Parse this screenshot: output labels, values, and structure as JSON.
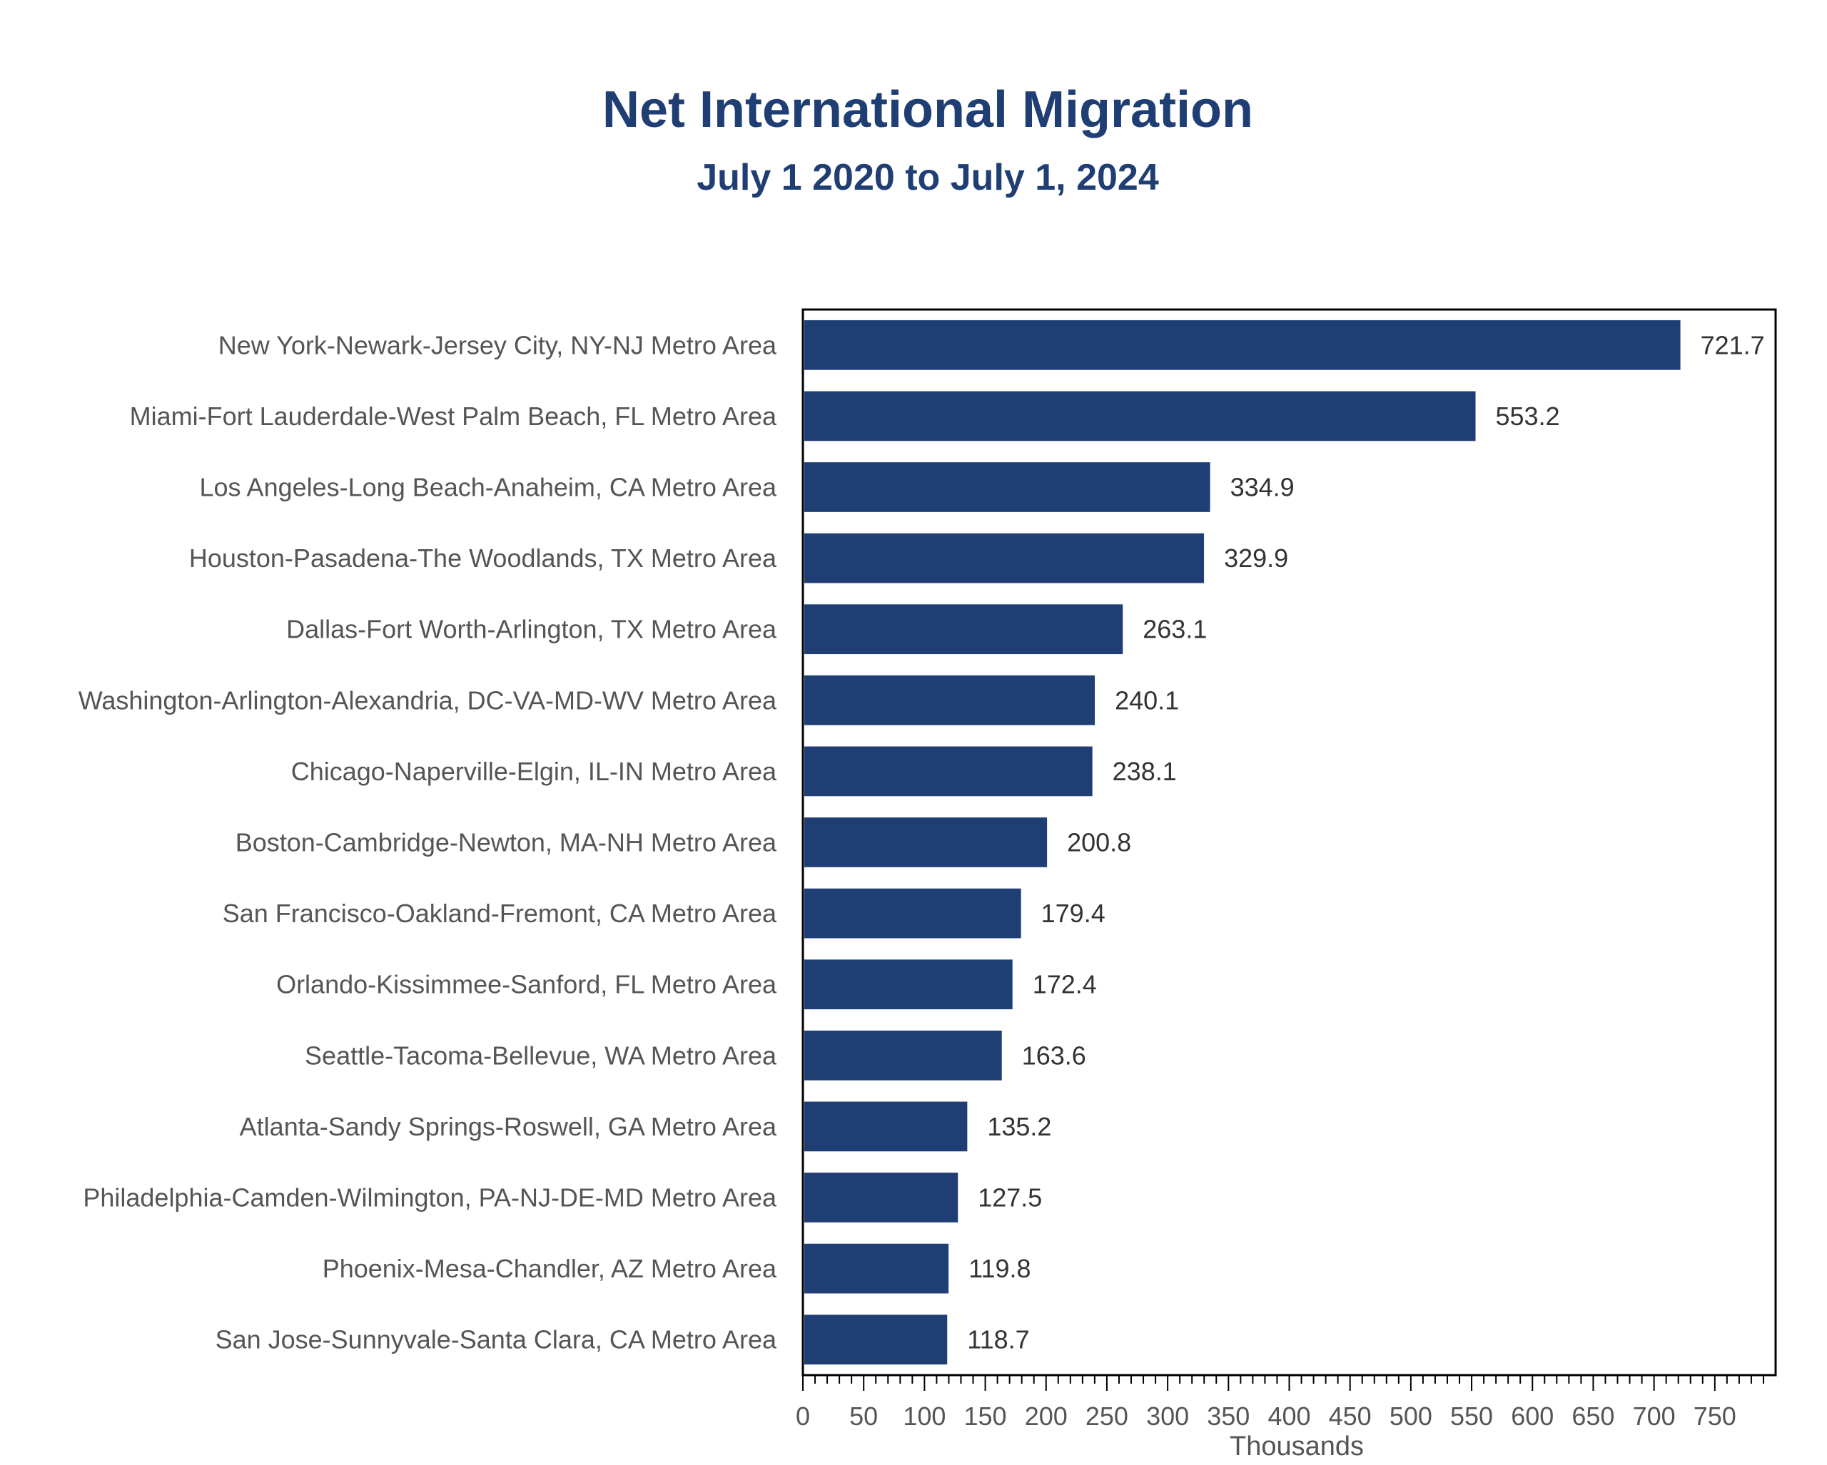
{
  "chart_data": {
    "type": "bar",
    "orientation": "horizontal",
    "title": "Net International Migration",
    "subtitle": "July 1 2020 to July 1, 2024",
    "xlabel": "Thousands",
    "ylabel": "",
    "xlim": [
      0,
      800
    ],
    "x_ticks": [
      "0",
      "50",
      "100",
      "150",
      "200",
      "250",
      "300",
      "350",
      "400",
      "450",
      "500",
      "550",
      "600",
      "650",
      "700",
      "750"
    ],
    "grid": false,
    "legend": "none",
    "bar_color": "#1f3f74",
    "categories": [
      "New York-Newark-Jersey City, NY-NJ Metro Area",
      "Miami-Fort Lauderdale-West Palm Beach, FL Metro Area",
      "Los Angeles-Long Beach-Anaheim, CA Metro Area",
      "Houston-Pasadena-The Woodlands, TX Metro Area",
      "Dallas-Fort Worth-Arlington, TX Metro Area",
      "Washington-Arlington-Alexandria, DC-VA-MD-WV Metro Area",
      "Chicago-Naperville-Elgin, IL-IN Metro Area",
      "Boston-Cambridge-Newton, MA-NH Metro Area",
      "San Francisco-Oakland-Fremont, CA Metro Area",
      "Orlando-Kissimmee-Sanford, FL Metro Area",
      "Seattle-Tacoma-Bellevue, WA Metro Area",
      "Atlanta-Sandy Springs-Roswell, GA Metro Area",
      "Philadelphia-Camden-Wilmington, PA-NJ-DE-MD Metro Area",
      "Phoenix-Mesa-Chandler, AZ Metro Area",
      "San Jose-Sunnyvale-Santa Clara, CA Metro Area"
    ],
    "values": [
      721.7,
      553.2,
      334.9,
      329.9,
      263.1,
      240.1,
      238.1,
      200.8,
      179.4,
      172.4,
      163.6,
      135.2,
      127.5,
      119.8,
      118.7
    ],
    "value_labels": [
      "721.7",
      "553.2",
      "334.9",
      "329.9",
      "263.1",
      "240.1",
      "238.1",
      "200.8",
      "179.4",
      "172.4",
      "163.6",
      "135.2",
      "127.5",
      "119.8",
      "118.7"
    ]
  }
}
